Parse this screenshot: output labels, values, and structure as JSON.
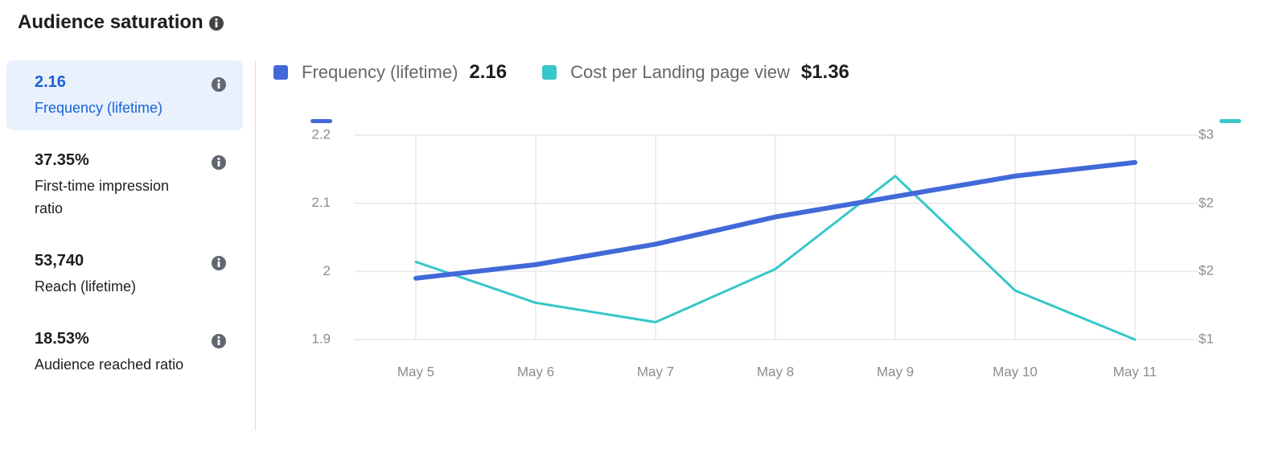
{
  "header": {
    "title": "Audience saturation"
  },
  "metrics": [
    {
      "value": "2.16",
      "label": "Frequency (lifetime)"
    },
    {
      "value": "37.35%",
      "label": "First-time impression ratio"
    },
    {
      "value": "53,740",
      "label": "Reach (lifetime)"
    },
    {
      "value": "18.53%",
      "label": "Audience reached ratio"
    }
  ],
  "chart_data": {
    "type": "line",
    "categories": [
      "May 5",
      "May 6",
      "May 7",
      "May 8",
      "May 9",
      "May 10",
      "May 11"
    ],
    "series": [
      {
        "name": "Frequency (lifetime)",
        "summary": "2.16",
        "color": "#4169d8",
        "values": [
          1.99,
          2.01,
          2.04,
          2.08,
          2.11,
          2.14,
          2.16
        ]
      },
      {
        "name": "Cost per Landing page view",
        "summary": "$1.36",
        "color": "#36c7c9",
        "axis": "y2",
        "values": [
          1.76,
          1.36,
          1.17,
          1.69,
          2.6,
          1.48,
          1.0
        ]
      }
    ],
    "ylim": [
      1.9,
      2.2
    ],
    "yticks": [
      1.9,
      2,
      2.1,
      2.2
    ],
    "y2lim": [
      1,
      3
    ],
    "y2ticks": [
      {
        "value": 1,
        "label": "$1"
      },
      {
        "value": 1.67,
        "label": "$2"
      },
      {
        "value": 2.33,
        "label": "$2"
      },
      {
        "value": 3,
        "label": "$3"
      }
    ],
    "grid": true
  }
}
